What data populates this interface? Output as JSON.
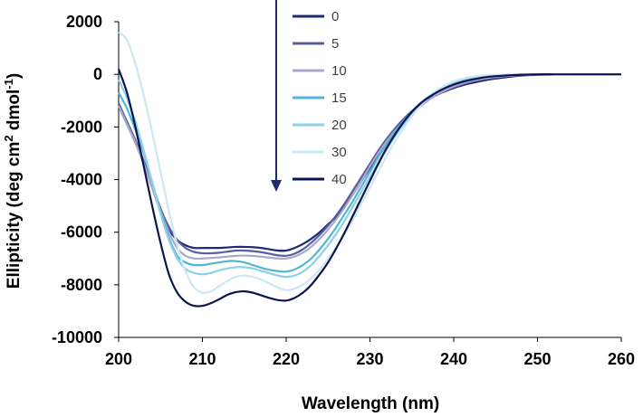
{
  "chart_data": {
    "type": "line",
    "title": "",
    "xlabel": "Wavelength (nm)",
    "ylabel_parts": {
      "main": "Ellipticity (deg cm",
      "sup1": "2",
      "mid": " dmol",
      "sup2": "-1",
      "end": ")"
    },
    "xlim": [
      200,
      260
    ],
    "ylim": [
      -10000,
      2000
    ],
    "x_ticks": [
      200,
      210,
      220,
      230,
      240,
      250,
      260
    ],
    "y_ticks": [
      2000,
      0,
      -2000,
      -4000,
      -6000,
      -8000,
      -10000
    ],
    "x": [
      200,
      201,
      202,
      203,
      204,
      205,
      206,
      207,
      208,
      209,
      210,
      211,
      212,
      213,
      214,
      215,
      216,
      217,
      218,
      219,
      220,
      221,
      222,
      223,
      224,
      225,
      226,
      227,
      228,
      229,
      230,
      231,
      232,
      233,
      234,
      235,
      236,
      237,
      238,
      239,
      240,
      241,
      242,
      243,
      244,
      245,
      246,
      247,
      248,
      249,
      250,
      252,
      254,
      256,
      258,
      260
    ],
    "series": [
      {
        "name": "0",
        "color": "#1e2a72",
        "values": [
          -1200,
          -1900,
          -2600,
          -3400,
          -4300,
          -5200,
          -5900,
          -6300,
          -6500,
          -6600,
          -6600,
          -6600,
          -6600,
          -6580,
          -6560,
          -6560,
          -6570,
          -6600,
          -6650,
          -6700,
          -6700,
          -6600,
          -6450,
          -6250,
          -6000,
          -5700,
          -5400,
          -5000,
          -4550,
          -4050,
          -3550,
          -3050,
          -2600,
          -2200,
          -1800,
          -1450,
          -1150,
          -950,
          -780,
          -640,
          -520,
          -420,
          -340,
          -270,
          -210,
          -160,
          -120,
          -80,
          -50,
          -30,
          -20,
          -10,
          0,
          0,
          0,
          0
        ]
      },
      {
        "name": "5",
        "color": "#5a5f9e",
        "values": [
          -1100,
          -1800,
          -2500,
          -3300,
          -4200,
          -5100,
          -5800,
          -6300,
          -6600,
          -6750,
          -6800,
          -6800,
          -6780,
          -6740,
          -6700,
          -6700,
          -6720,
          -6760,
          -6820,
          -6880,
          -6900,
          -6820,
          -6650,
          -6400,
          -6100,
          -5750,
          -5350,
          -4900,
          -4400,
          -3900,
          -3400,
          -2900,
          -2450,
          -2050,
          -1700,
          -1400,
          -1150,
          -950,
          -780,
          -620,
          -490,
          -380,
          -290,
          -220,
          -160,
          -120,
          -80,
          -50,
          -30,
          -20,
          -10,
          -10,
          0,
          0,
          0,
          0
        ]
      },
      {
        "name": "10",
        "color": "#a9a9c9",
        "values": [
          -1200,
          -1900,
          -2600,
          -3400,
          -4300,
          -5200,
          -6000,
          -6600,
          -6900,
          -7000,
          -7000,
          -6980,
          -6960,
          -6930,
          -6900,
          -6890,
          -6900,
          -6930,
          -6970,
          -7000,
          -7000,
          -6930,
          -6780,
          -6550,
          -6250,
          -5900,
          -5500,
          -5050,
          -4550,
          -4050,
          -3500,
          -3000,
          -2550,
          -2150,
          -1800,
          -1500,
          -1220,
          -980,
          -770,
          -600,
          -460,
          -350,
          -260,
          -190,
          -140,
          -100,
          -70,
          -50,
          -30,
          -20,
          -10,
          0,
          0,
          0,
          0,
          0
        ]
      },
      {
        "name": "15",
        "color": "#4fb6d6",
        "values": [
          -700,
          -1300,
          -2100,
          -3000,
          -4100,
          -5200,
          -6200,
          -6900,
          -7150,
          -7250,
          -7250,
          -7200,
          -7150,
          -7100,
          -7100,
          -7150,
          -7250,
          -7350,
          -7430,
          -7480,
          -7500,
          -7420,
          -7250,
          -7000,
          -6650,
          -6250,
          -5800,
          -5300,
          -4800,
          -4250,
          -3700,
          -3150,
          -2650,
          -2200,
          -1780,
          -1420,
          -1100,
          -850,
          -640,
          -480,
          -350,
          -250,
          -180,
          -130,
          -90,
          -60,
          -40,
          -30,
          -20,
          -10,
          0,
          0,
          0,
          0,
          0,
          0
        ]
      },
      {
        "name": "20",
        "color": "#8fd0e6",
        "values": [
          -200,
          -900,
          -1800,
          -2900,
          -4100,
          -5300,
          -6300,
          -7000,
          -7400,
          -7550,
          -7600,
          -7550,
          -7450,
          -7380,
          -7330,
          -7330,
          -7380,
          -7470,
          -7560,
          -7650,
          -7700,
          -7650,
          -7500,
          -7250,
          -6900,
          -6500,
          -6050,
          -5550,
          -5000,
          -4450,
          -3900,
          -3350,
          -2850,
          -2350,
          -1900,
          -1500,
          -1150,
          -860,
          -620,
          -440,
          -300,
          -200,
          -130,
          -80,
          -50,
          -30,
          -20,
          -10,
          0,
          0,
          0,
          0,
          0,
          0,
          0,
          0
        ]
      },
      {
        "name": "30",
        "color": "#cce8f4",
        "values": [
          1600,
          1300,
          400,
          -800,
          -2200,
          -3700,
          -5200,
          -6500,
          -7500,
          -8100,
          -8300,
          -8250,
          -8050,
          -7850,
          -7700,
          -7650,
          -7700,
          -7800,
          -7950,
          -8100,
          -8200,
          -8150,
          -8000,
          -7750,
          -7400,
          -7000,
          -6550,
          -6050,
          -5500,
          -4900,
          -4300,
          -3700,
          -3100,
          -2550,
          -2050,
          -1600,
          -1200,
          -880,
          -620,
          -420,
          -270,
          -170,
          -100,
          -60,
          -30,
          -20,
          -10,
          0,
          0,
          0,
          0,
          0,
          0,
          0,
          0,
          0
        ]
      },
      {
        "name": "40",
        "color": "#0c1450",
        "values": [
          200,
          -700,
          -2000,
          -3500,
          -5000,
          -6400,
          -7600,
          -8300,
          -8650,
          -8800,
          -8800,
          -8700,
          -8550,
          -8380,
          -8280,
          -8250,
          -8300,
          -8400,
          -8500,
          -8580,
          -8600,
          -8500,
          -8300,
          -8000,
          -7600,
          -7150,
          -6600,
          -6000,
          -5350,
          -4700,
          -4050,
          -3400,
          -2800,
          -2280,
          -1820,
          -1430,
          -1120,
          -880,
          -680,
          -520,
          -390,
          -290,
          -210,
          -150,
          -100,
          -70,
          -50,
          -30,
          -20,
          -10,
          0,
          0,
          0,
          0,
          0,
          0
        ]
      }
    ],
    "legend_position": "top-center",
    "arrow_direction": "down"
  }
}
